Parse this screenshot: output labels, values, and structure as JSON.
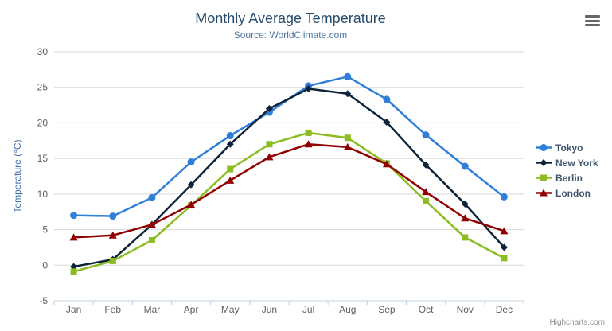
{
  "chart_data": {
    "type": "line",
    "title": "Monthly Average Temperature",
    "subtitle": "Source: WorldClimate.com",
    "xlabel": "",
    "ylabel": "Temperature (°C)",
    "categories": [
      "Jan",
      "Feb",
      "Mar",
      "Apr",
      "May",
      "Jun",
      "Jul",
      "Aug",
      "Sep",
      "Oct",
      "Nov",
      "Dec"
    ],
    "ylim": [
      -5,
      30
    ],
    "ytick_step": 5,
    "grid": true,
    "legend_position": "right",
    "series": [
      {
        "name": "Tokyo",
        "color": "#2f7ed8",
        "marker": "circle",
        "values": [
          7.0,
          6.9,
          9.5,
          14.5,
          18.2,
          21.5,
          25.2,
          26.5,
          23.3,
          18.3,
          13.9,
          9.6
        ]
      },
      {
        "name": "New York",
        "color": "#0d233a",
        "marker": "diamond",
        "values": [
          -0.2,
          0.8,
          5.7,
          11.3,
          17.0,
          22.0,
          24.8,
          24.1,
          20.1,
          14.1,
          8.6,
          2.5
        ]
      },
      {
        "name": "Berlin",
        "color": "#8bbc21",
        "marker": "square",
        "values": [
          -0.9,
          0.6,
          3.5,
          8.4,
          13.5,
          17.0,
          18.6,
          17.9,
          14.3,
          9.0,
          3.9,
          1.0
        ]
      },
      {
        "name": "London",
        "color": "#910000",
        "marker": "triangle",
        "values": [
          3.9,
          4.2,
          5.7,
          8.5,
          11.9,
          15.2,
          17.0,
          16.6,
          14.2,
          10.3,
          6.6,
          4.8
        ]
      }
    ],
    "credit": "Highcharts.com"
  },
  "style_colors": {
    "grid_line": "#D8D8D8",
    "axis_line": "#C0D0E0",
    "tick_label": "#606060",
    "y_axis_title": "#4572A7"
  }
}
